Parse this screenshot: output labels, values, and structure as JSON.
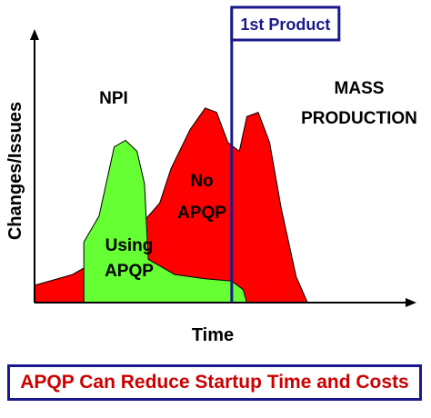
{
  "chart_data": {
    "type": "area",
    "ylabel": "Changes/Issues",
    "xlabel": "Time",
    "grid": false,
    "series": [
      {
        "name": "No APQP",
        "color": "#ff0000",
        "points": [
          [
            0,
            8
          ],
          [
            10,
            13
          ],
          [
            20,
            23
          ],
          [
            27,
            34
          ],
          [
            33,
            46
          ],
          [
            36,
            62
          ],
          [
            41,
            80
          ],
          [
            45,
            90
          ],
          [
            48,
            88
          ],
          [
            51,
            74
          ],
          [
            54,
            70
          ],
          [
            56,
            86
          ],
          [
            59,
            88
          ],
          [
            62,
            74
          ],
          [
            65,
            44
          ],
          [
            69,
            12
          ],
          [
            72,
            0
          ]
        ]
      },
      {
        "name": "Using APQP",
        "color": "#66ff33",
        "points": [
          [
            13,
            0
          ],
          [
            13,
            28
          ],
          [
            17,
            40
          ],
          [
            21,
            72
          ],
          [
            24,
            75
          ],
          [
            27,
            70
          ],
          [
            29,
            55
          ],
          [
            30,
            20
          ],
          [
            37,
            13
          ],
          [
            45,
            11
          ],
          [
            52,
            10
          ],
          [
            55,
            6
          ],
          [
            56,
            0
          ]
        ]
      }
    ],
    "annotations": {
      "npi": "NPI",
      "mass_line1": "MASS",
      "mass_line2": "PRODUCTION",
      "no_apqp_line1": "No",
      "no_apqp_line2": "APQP",
      "using_apqp_line1": "Using",
      "using_apqp_line2": "APQP",
      "marker": "1st Product"
    },
    "marker_x": 52,
    "xlim": [
      0,
      100
    ],
    "ylim": [
      0,
      100
    ]
  },
  "banner": {
    "text": "APQP Can Reduce Startup Time and Costs"
  },
  "colors": {
    "axis": "#000000",
    "marker": "#1a1a8c",
    "banner_border": "#1a1a8c",
    "banner_text": "#cc0000"
  }
}
